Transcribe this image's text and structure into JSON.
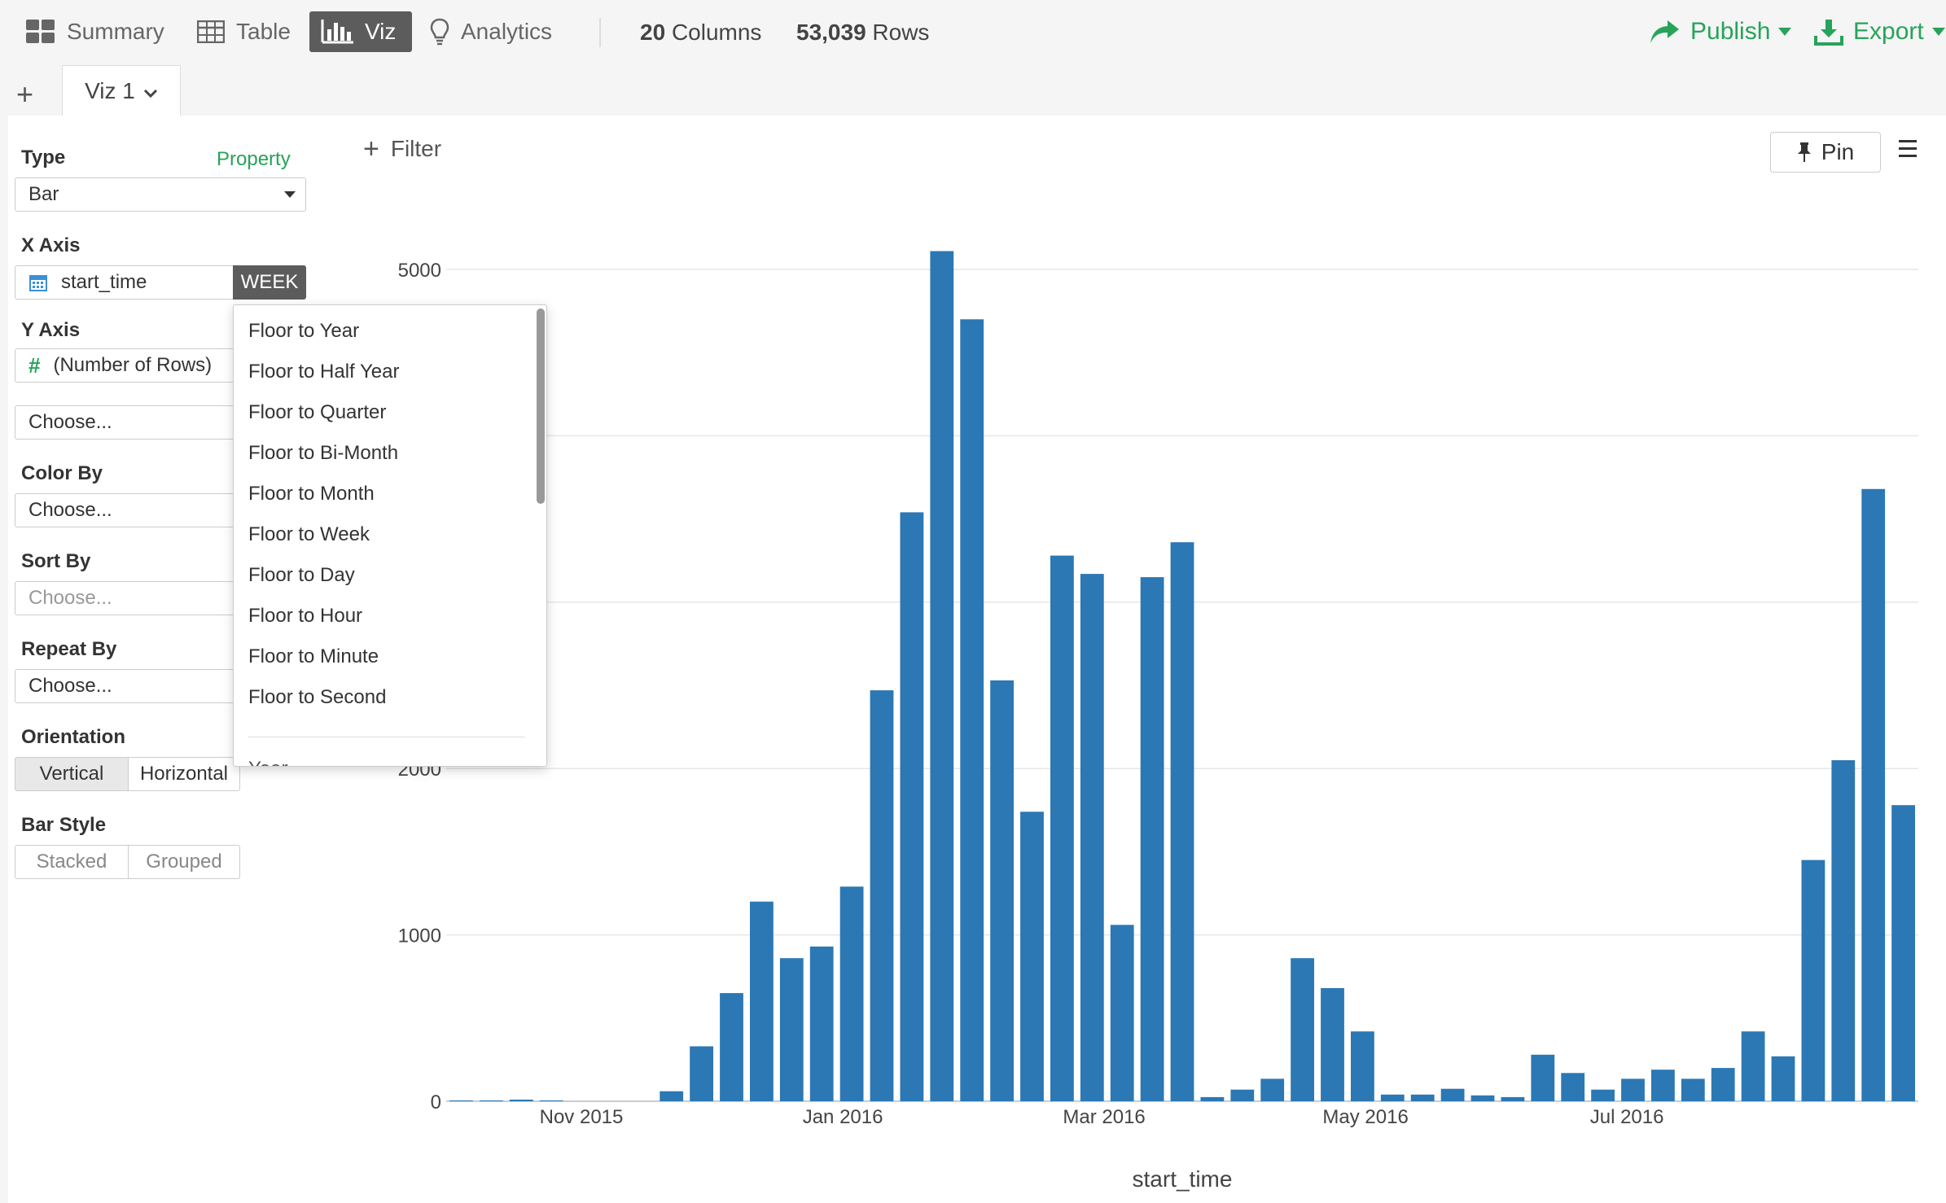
{
  "nav": {
    "summary": "Summary",
    "table": "Table",
    "viz": "Viz",
    "analytics": "Analytics"
  },
  "stats": {
    "columns_count": "20",
    "columns_label": "Columns",
    "rows_count": "53,039",
    "rows_label": "Rows"
  },
  "actions": {
    "publish": "Publish",
    "export": "Export"
  },
  "tabs": {
    "add": "+",
    "viz1": "Viz 1"
  },
  "sidebar": {
    "type_label": "Type",
    "property_link": "Property",
    "type_value": "Bar",
    "xaxis_label": "X Axis",
    "xaxis_value": "start_time",
    "xaxis_unit": "WEEK",
    "yaxis_label": "Y Axis",
    "yaxis_value": "(Number of Rows)",
    "yaxis_extra": "Choose...",
    "colorby_label": "Color By",
    "colorby_value": "Choose...",
    "sortby_label": "Sort By",
    "sortby_value": "Choose...",
    "repeatby_label": "Repeat By",
    "repeatby_value": "Choose...",
    "orientation_label": "Orientation",
    "orientation_vertical": "Vertical",
    "orientation_horizontal": "Horizontal",
    "barstyle_label": "Bar Style",
    "barstyle_stacked": "Stacked",
    "barstyle_grouped": "Grouped"
  },
  "toolbar": {
    "filter": "Filter",
    "pin": "Pin"
  },
  "dropdown": {
    "items": [
      "Floor to Year",
      "Floor to Half Year",
      "Floor to Quarter",
      "Floor to Bi-Month",
      "Floor to Month",
      "Floor to Week",
      "Floor to Day",
      "Floor to Hour",
      "Floor to Minute",
      "Floor to Second"
    ],
    "cut_item": "Year"
  },
  "colors": {
    "bar": "#2b78b4",
    "accent": "#27a35a",
    "active_tab": "#5c5c5c"
  },
  "chart_data": {
    "type": "bar",
    "xlabel": "start_time",
    "ylabel": "",
    "ylim": [
      0,
      5000
    ],
    "yticks": [
      0,
      1000,
      2000,
      5000
    ],
    "xticks": [
      {
        "label": "Nov 2015",
        "week": 4.5
      },
      {
        "label": "Jan 2016",
        "week": 13.2
      },
      {
        "label": "Mar 2016",
        "week": 21.9
      },
      {
        "label": "May 2016",
        "week": 30.6
      },
      {
        "label": "Jul 2016",
        "week": 39.3
      }
    ],
    "values": [
      5,
      5,
      10,
      5,
      0,
      0,
      0,
      60,
      330,
      650,
      1200,
      860,
      930,
      1290,
      2470,
      3540,
      5110,
      4700,
      2530,
      1740,
      3280,
      3170,
      1060,
      3150,
      3360,
      25,
      70,
      135,
      860,
      680,
      420,
      40,
      40,
      75,
      35,
      25,
      280,
      170,
      70,
      135,
      190,
      135,
      200,
      420,
      270,
      1450,
      2050,
      3680,
      1780
    ],
    "grid": true,
    "legend": "none"
  }
}
